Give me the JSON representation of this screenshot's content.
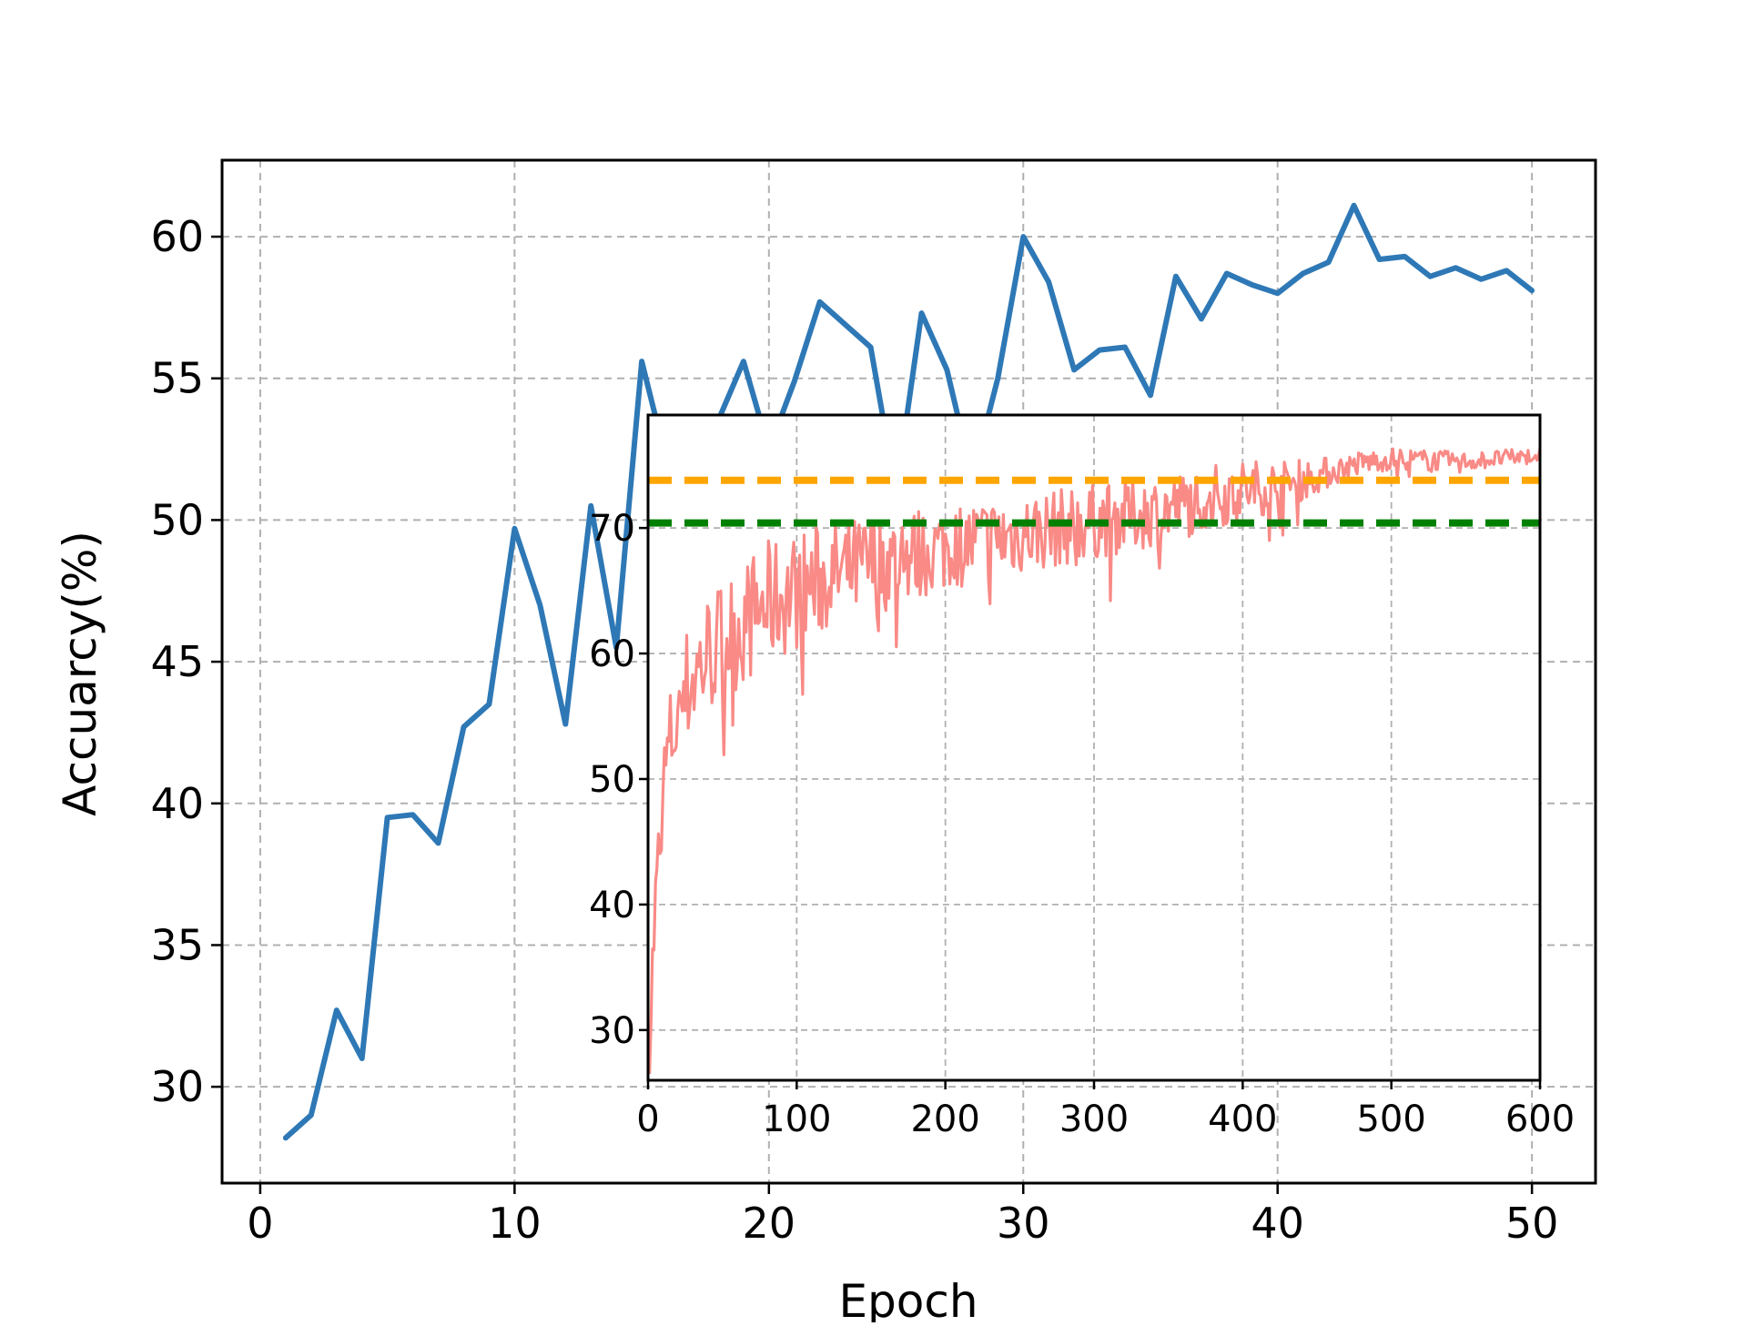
{
  "chart_data": [
    {
      "type": "line",
      "xlabel": "Epoch",
      "ylabel": "Accuarcy(%)",
      "xlim": [
        -1.5,
        52.5
      ],
      "ylim": [
        26.6,
        62.7
      ],
      "xticks": [
        0,
        10,
        20,
        30,
        40,
        50
      ],
      "yticks": [
        30,
        35,
        40,
        45,
        50,
        55,
        60
      ],
      "grid": true,
      "series": [
        {
          "color": "#2e78b6",
          "x": [
            1,
            2,
            3,
            4,
            5,
            6,
            7,
            8,
            9,
            10,
            11,
            12,
            13,
            14,
            15,
            16,
            17,
            18,
            19,
            20,
            21,
            22,
            23,
            24,
            25,
            26,
            27,
            28,
            29,
            30,
            31,
            32,
            33,
            34,
            35,
            36,
            37,
            38,
            39,
            40,
            41,
            42,
            43,
            44,
            45,
            46,
            47,
            48,
            49,
            50
          ],
          "values": [
            28.2,
            29.0,
            32.7,
            31.0,
            39.5,
            39.6,
            38.6,
            42.7,
            43.5,
            49.7,
            47.0,
            42.8,
            50.5,
            45.5,
            55.6,
            52.0,
            50.5,
            53.5,
            55.6,
            52.5,
            54.9,
            57.7,
            56.9,
            56.1,
            51.0,
            57.3,
            55.3,
            51.5,
            55.0,
            60.0,
            58.4,
            55.3,
            56.0,
            56.1,
            54.4,
            58.6,
            57.1,
            58.7,
            58.3,
            58.0,
            58.7,
            59.1,
            61.1,
            59.2,
            59.3,
            58.6,
            58.9,
            58.5,
            58.8,
            58.1
          ]
        }
      ]
    },
    {
      "type": "line",
      "position": "inset",
      "xlim": [
        0,
        600
      ],
      "ylim": [
        26,
        79
      ],
      "xticks": [
        0,
        100,
        200,
        300,
        400,
        500,
        600
      ],
      "yticks": [
        30,
        40,
        50,
        60,
        70
      ],
      "grid": true,
      "noise_seed": 7,
      "series": [
        {
          "color": "#f98a86",
          "trend": {
            "x": [
              1,
              3,
              5,
              8,
              10,
              12,
              15,
              20,
              25,
              30,
              40,
              50,
              60,
              70,
              80,
              100,
              120,
              150,
              200,
              250,
              300,
              350,
              380,
              400,
              430,
              460,
              480,
              500,
              550,
              600
            ],
            "values": [
              29,
              35,
              40,
              45,
              49,
              51,
              53,
              55,
              57,
              58,
              60,
              61,
              62,
              63,
              64,
              65,
              66,
              67,
              68.5,
              69.5,
              70.5,
              71.5,
              72.5,
              73,
              73.5,
              74.5,
              75.2,
              75.5,
              75.3,
              75.8
            ]
          },
          "amplitude": {
            "x": [
              1,
              20,
              80,
              200,
              300,
              400,
              470,
              600
            ],
            "values": [
              3,
              5,
              5,
              3.5,
              3,
              2.5,
              1,
              0.6
            ]
          }
        }
      ],
      "reference_lines": [
        {
          "y": 73.8,
          "color": "#ffa500",
          "style": "dashed"
        },
        {
          "y": 70.4,
          "color": "#008000",
          "style": "dashed"
        }
      ]
    }
  ]
}
